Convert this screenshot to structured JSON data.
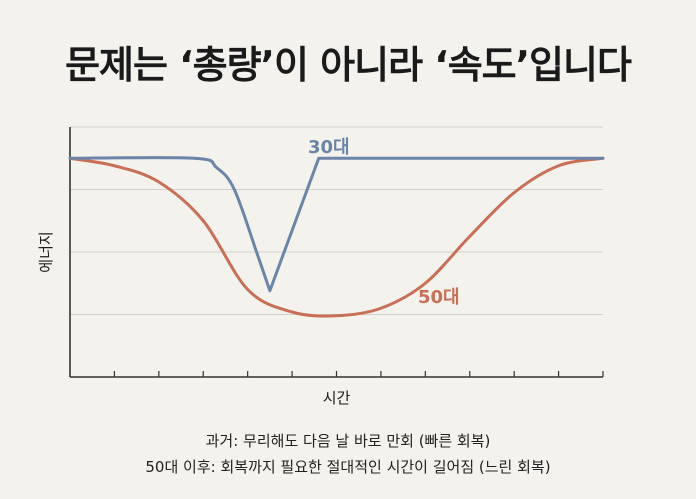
{
  "chart_data": {
    "type": "line",
    "title": "문제는 ‘총량’이 아니라 ‘속도’입니다",
    "xlabel": "시간",
    "ylabel": "에너지",
    "xlim": [
      0,
      12
    ],
    "ylim": [
      0,
      4
    ],
    "grid": true,
    "series": [
      {
        "name": "30대",
        "color": "#6b85a8",
        "x": [
          0,
          2.8,
          3.3,
          3.7,
          4.2,
          4.5,
          5.6,
          12
        ],
        "y": [
          3.5,
          3.5,
          3.35,
          3.0,
          2.0,
          1.38,
          3.5,
          3.5
        ]
      },
      {
        "name": "50대",
        "color": "#c86f56",
        "x": [
          0,
          1.0,
          2.0,
          3.0,
          4.0,
          5.0,
          6.0,
          7.0,
          8.0,
          9.0,
          10.0,
          11.0,
          12.0
        ],
        "y": [
          3.5,
          3.38,
          3.12,
          2.5,
          1.4,
          1.04,
          0.98,
          1.1,
          1.5,
          2.25,
          2.95,
          3.38,
          3.5
        ]
      }
    ],
    "captions": [
      "과거: 무리해도 다음 날 바로 만회 (빠른 회복)",
      "50대 이후: 회복까지 필요한 절대적인 시간이 길어짐 (느린 회복)"
    ]
  },
  "colors": {
    "background": "#f4f2ec",
    "axis": "#333333",
    "grid": "#d2d0ca"
  }
}
